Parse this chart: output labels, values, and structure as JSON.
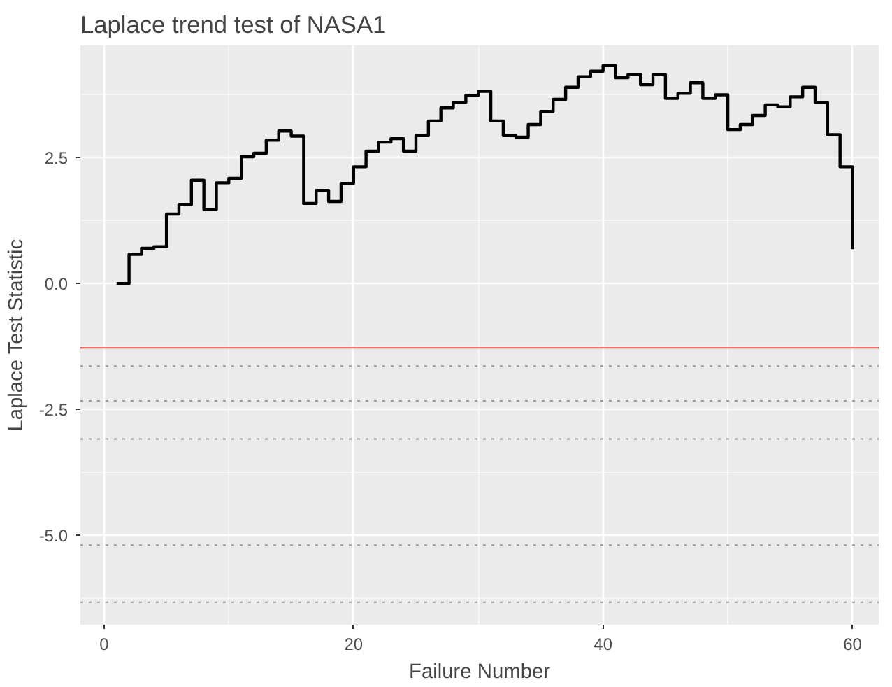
{
  "chart_data": {
    "type": "step",
    "title": "Laplace trend test of NASA1",
    "xlabel": "Failure Number",
    "ylabel": "Laplace Test Statistic",
    "x": [
      1,
      2,
      3,
      4,
      5,
      6,
      7,
      8,
      9,
      10,
      11,
      12,
      13,
      14,
      15,
      16,
      17,
      18,
      19,
      20,
      21,
      22,
      23,
      24,
      25,
      26,
      27,
      28,
      29,
      30,
      31,
      32,
      33,
      34,
      35,
      36,
      37,
      38,
      39,
      40,
      41,
      42,
      43,
      44,
      45,
      46,
      47,
      48,
      49,
      50,
      51,
      52,
      53,
      54,
      55,
      56,
      57,
      58,
      59,
      60
    ],
    "series": [
      {
        "color": "#000000",
        "values": [
          0,
          0.58,
          0.7,
          0.73,
          1.38,
          1.57,
          2.05,
          1.47,
          2.0,
          2.09,
          2.52,
          2.59,
          2.85,
          3.03,
          2.93,
          1.59,
          1.85,
          1.63,
          1.99,
          2.32,
          2.63,
          2.81,
          2.88,
          2.63,
          2.94,
          3.23,
          3.49,
          3.6,
          3.74,
          3.82,
          3.23,
          2.94,
          2.91,
          3.16,
          3.42,
          3.66,
          3.9,
          4.11,
          4.22,
          4.33,
          4.09,
          4.15,
          3.95,
          4.15,
          3.68,
          3.78,
          3.99,
          3.68,
          3.75,
          3.06,
          3.16,
          3.34,
          3.55,
          3.51,
          3.71,
          3.9,
          3.6,
          2.96,
          2.32,
          0.68
        ]
      }
    ],
    "xlim": [
      -1.9,
      62.1
    ],
    "ylim": [
      -6.78,
      4.73
    ],
    "xticks": [
      0,
      20,
      40,
      60
    ],
    "yticks": [
      {
        "value": -5,
        "label": "-5.0"
      },
      {
        "value": -2.5,
        "label": "-2.5"
      },
      {
        "value": 0,
        "label": "0.0"
      },
      {
        "value": 2.5,
        "label": "2.5"
      }
    ],
    "grid": true,
    "line_style": "solid",
    "ref_lines": [
      {
        "axis": "y",
        "value": -1.28,
        "color": "#e8453c",
        "line_style": "solid"
      },
      {
        "axis": "y",
        "value": -1.64,
        "color": "#999999",
        "line_style": "dotted"
      },
      {
        "axis": "y",
        "value": -2.33,
        "color": "#999999",
        "line_style": "dotted"
      },
      {
        "axis": "y",
        "value": -3.09,
        "color": "#999999",
        "line_style": "dotted"
      },
      {
        "axis": "y",
        "value": -5.2,
        "color": "#999999",
        "line_style": "dotted"
      },
      {
        "axis": "y",
        "value": -6.33,
        "color": "#999999",
        "line_style": "dotted"
      }
    ]
  }
}
